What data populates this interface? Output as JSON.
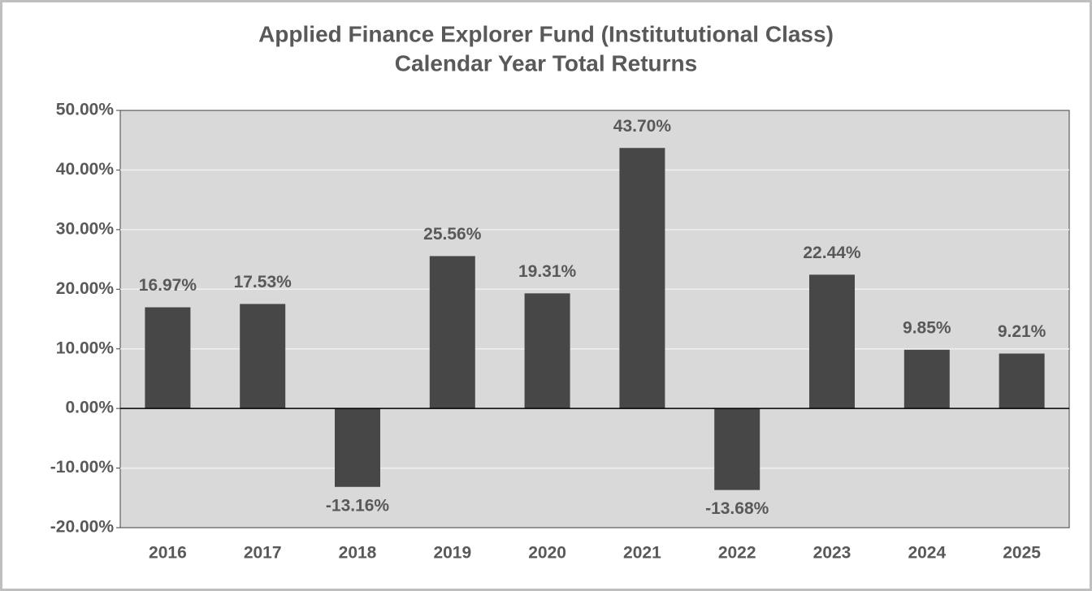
{
  "chart_data": {
    "type": "bar",
    "title": "Applied Finance Explorer Fund (Institututional Class)",
    "subtitle": "Calendar Year Total Returns",
    "categories": [
      "2016",
      "2017",
      "2018",
      "2019",
      "2020",
      "2021",
      "2022",
      "2023",
      "2024",
      "2025"
    ],
    "values": [
      16.97,
      17.53,
      -13.16,
      25.56,
      19.31,
      43.7,
      -13.68,
      22.44,
      9.85,
      9.21
    ],
    "value_labels": [
      "16.97%",
      "17.53%",
      "-13.16%",
      "25.56%",
      "19.31%",
      "43.70%",
      "-13.68%",
      "22.44%",
      "9.85%",
      "9.21%"
    ],
    "color": "#474747",
    "ylim": [
      -20,
      50
    ],
    "yticks": [
      {
        "value": -20,
        "label": "-20.00%"
      },
      {
        "value": -10,
        "label": "-10.00%"
      },
      {
        "value": 0,
        "label": "0.00%"
      },
      {
        "value": 10,
        "label": "10.00%"
      },
      {
        "value": 20,
        "label": "20.00%"
      },
      {
        "value": 30,
        "label": "30.00%"
      },
      {
        "value": 40,
        "label": "40.00%"
      },
      {
        "value": 50,
        "label": "50.00%"
      }
    ],
    "grid": true
  }
}
